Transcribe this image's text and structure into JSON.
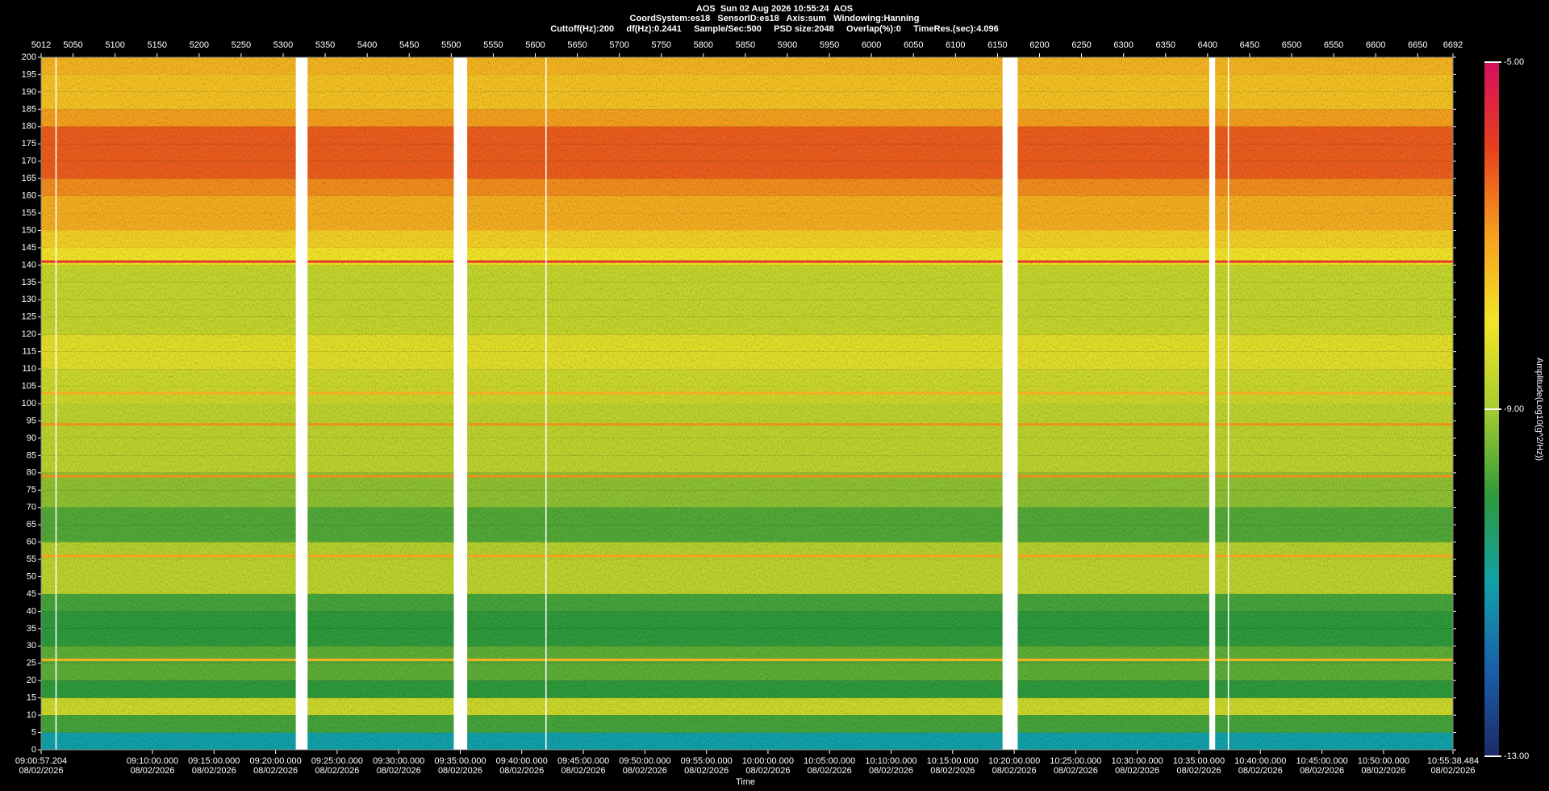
{
  "chart_data": {
    "type": "spectrogram",
    "title": [
      "AOS  Sun 02 Aug 2026 10:55:24  AOS",
      "CoordSystem:es18   SensorID:es18   Axis:sum   Windowing:Hanning",
      "Cuttoff(Hz):200     df(Hz):0.2441     Sample/Sec:500     PSD size:2048     Overlap(%):0     TimeRes.(sec):4.096"
    ],
    "xlabel": "Time",
    "colorbar_label": "Amplitude(Log10(g^2/Hz))",
    "xlim": [
      5012,
      6692
    ],
    "xticks": [
      5012,
      5050,
      5100,
      5150,
      5200,
      5250,
      5300,
      5350,
      5400,
      5450,
      5500,
      5550,
      5600,
      5650,
      5700,
      5750,
      5800,
      5850,
      5900,
      5950,
      6000,
      6050,
      6100,
      6150,
      6200,
      6250,
      6300,
      6350,
      6400,
      6450,
      6500,
      6550,
      6600,
      6650,
      6692
    ],
    "time_ticks": [
      {
        "value": 5012,
        "label": "09:00:57.204"
      },
      {
        "value": 5144.5,
        "label": "09:10:00.000"
      },
      {
        "value": 5217.7,
        "label": "09:15:00.000"
      },
      {
        "value": 5291.0,
        "label": "09:20:00.000"
      },
      {
        "value": 5364.2,
        "label": "09:25:00.000"
      },
      {
        "value": 5437.5,
        "label": "09:30:00.000"
      },
      {
        "value": 5510.7,
        "label": "09:35:00.000"
      },
      {
        "value": 5583.9,
        "label": "09:40:00.000"
      },
      {
        "value": 5657.2,
        "label": "09:45:00.000"
      },
      {
        "value": 5730.4,
        "label": "09:50:00.000"
      },
      {
        "value": 5803.7,
        "label": "09:55:00.000"
      },
      {
        "value": 5876.9,
        "label": "10:00:00.000"
      },
      {
        "value": 5950.1,
        "label": "10:05:00.000"
      },
      {
        "value": 6023.4,
        "label": "10:10:00.000"
      },
      {
        "value": 6096.6,
        "label": "10:15:00.000"
      },
      {
        "value": 6169.9,
        "label": "10:20:00.000"
      },
      {
        "value": 6243.1,
        "label": "10:25:00.000"
      },
      {
        "value": 6316.3,
        "label": "10:30:00.000"
      },
      {
        "value": 6389.6,
        "label": "10:35:00.000"
      },
      {
        "value": 6462.8,
        "label": "10:40:00.000"
      },
      {
        "value": 6536.1,
        "label": "10:45:00.000"
      },
      {
        "value": 6609.3,
        "label": "10:50:00.000"
      },
      {
        "value": 6692,
        "label": "10:55:38.484"
      }
    ],
    "time_date": "08/02/2026",
    "ylim": [
      0,
      200
    ],
    "yticks": [
      0,
      5,
      10,
      15,
      20,
      25,
      30,
      35,
      40,
      45,
      50,
      55,
      60,
      65,
      70,
      75,
      80,
      85,
      90,
      95,
      100,
      105,
      110,
      115,
      120,
      125,
      130,
      135,
      140,
      145,
      150,
      155,
      160,
      165,
      170,
      175,
      180,
      185,
      190,
      195,
      200
    ],
    "freq_bins": [
      0,
      5,
      10,
      15,
      20,
      25,
      30,
      35,
      40,
      45,
      50,
      55,
      60,
      65,
      70,
      75,
      80,
      85,
      90,
      95,
      100,
      105,
      110,
      115,
      120,
      125,
      130,
      135,
      140,
      145,
      150,
      155,
      160,
      165,
      170,
      175,
      180,
      185,
      190,
      195,
      200
    ],
    "values": [
      -11,
      -9.8,
      -8.5,
      -10,
      -9.6,
      -9.6,
      -10,
      -10,
      -9.8,
      -8.7,
      -8.7,
      -8.8,
      -9.7,
      -9.7,
      -9.2,
      -9.2,
      -8.7,
      -8.7,
      -8.7,
      -8.7,
      -8.5,
      -8.5,
      -8.2,
      -8.2,
      -8.6,
      -8.6,
      -8.6,
      -8.6,
      -8,
      -7.7,
      -7.2,
      -7.2,
      -6.8,
      -6.3,
      -6.3,
      -6.3,
      -7,
      -7.5,
      -7.5,
      -7.3
    ],
    "tones": {
      "freq": [
        26,
        56,
        79,
        94,
        103,
        141
      ],
      "values": [
        -7.3,
        -7,
        -6.8,
        -6.8,
        -7.2,
        -5.8
      ]
    },
    "gaps": [
      [
        5029,
        5030
      ],
      [
        5315,
        5329
      ],
      [
        5503,
        5519
      ],
      [
        5612,
        5613
      ],
      [
        6156,
        6174
      ],
      [
        6402,
        6409
      ],
      [
        6424,
        6425
      ]
    ],
    "clim": [
      -13,
      -5
    ],
    "cticks": [
      {
        "value": -13,
        "label": "-13.00"
      },
      {
        "value": -9,
        "label": "-9.00"
      },
      {
        "value": -5,
        "label": "-5.00"
      }
    ],
    "colorscale": [
      [
        -13,
        "#1c2a66"
      ],
      [
        -12,
        "#1a5fa8"
      ],
      [
        -11,
        "#12a0a8"
      ],
      [
        -10,
        "#2e9a3c"
      ],
      [
        -9,
        "#a6cc30"
      ],
      [
        -8,
        "#f2e428"
      ],
      [
        -7,
        "#f5a01e"
      ],
      [
        -6,
        "#e8401c"
      ],
      [
        -5,
        "#d3105e"
      ]
    ]
  }
}
